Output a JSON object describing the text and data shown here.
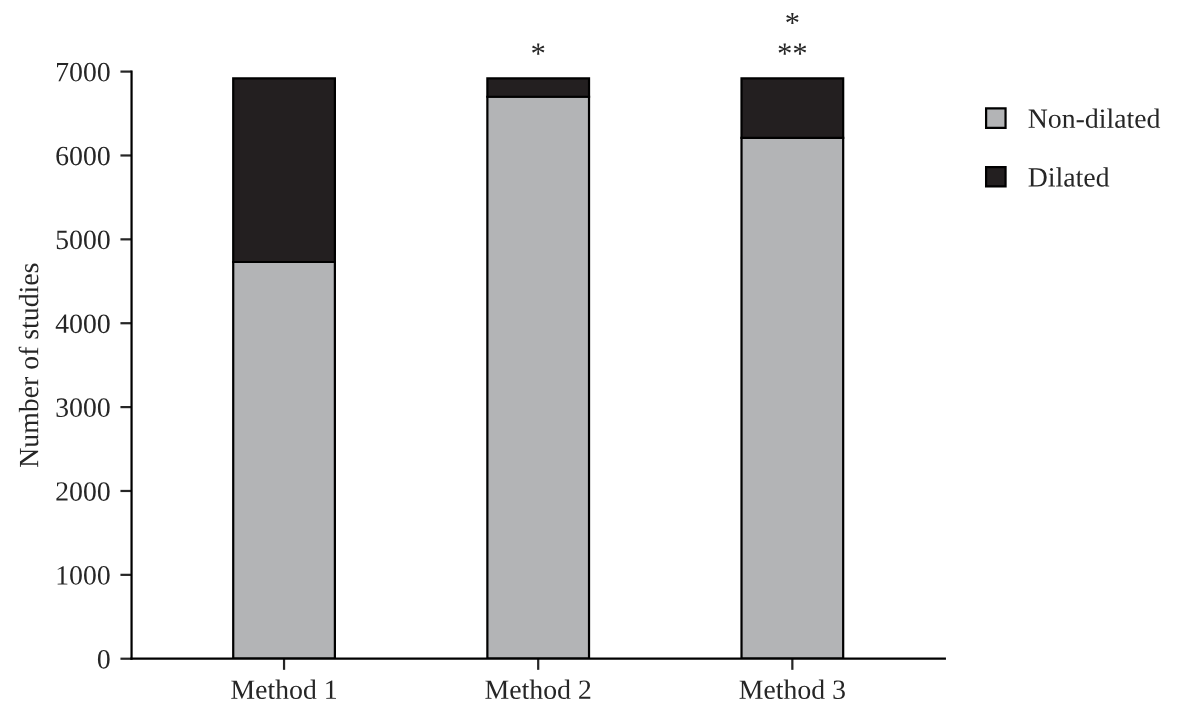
{
  "chart_data": {
    "type": "bar",
    "stacked": true,
    "ylabel": "Number of studies",
    "categories": [
      "Method 1",
      "Method 2",
      "Method 3"
    ],
    "series": [
      {
        "name": "Non-dilated",
        "color": "#b3b4b6",
        "values": [
          4730,
          6700,
          6210
        ]
      },
      {
        "name": "Dilated",
        "color": "#231f20",
        "values": [
          2190,
          220,
          710
        ]
      }
    ],
    "ylim": [
      0,
      7000
    ],
    "yticks": [
      0,
      1000,
      2000,
      3000,
      4000,
      5000,
      6000,
      7000
    ],
    "grid": false,
    "legend": "right",
    "annotations": [
      {
        "text": "*",
        "x": "Method 2",
        "y": 6920
      },
      {
        "text": "**",
        "x": "Method 3",
        "y": 6920
      },
      {
        "text": "*",
        "x": "Method 3",
        "y": 6920
      }
    ]
  }
}
